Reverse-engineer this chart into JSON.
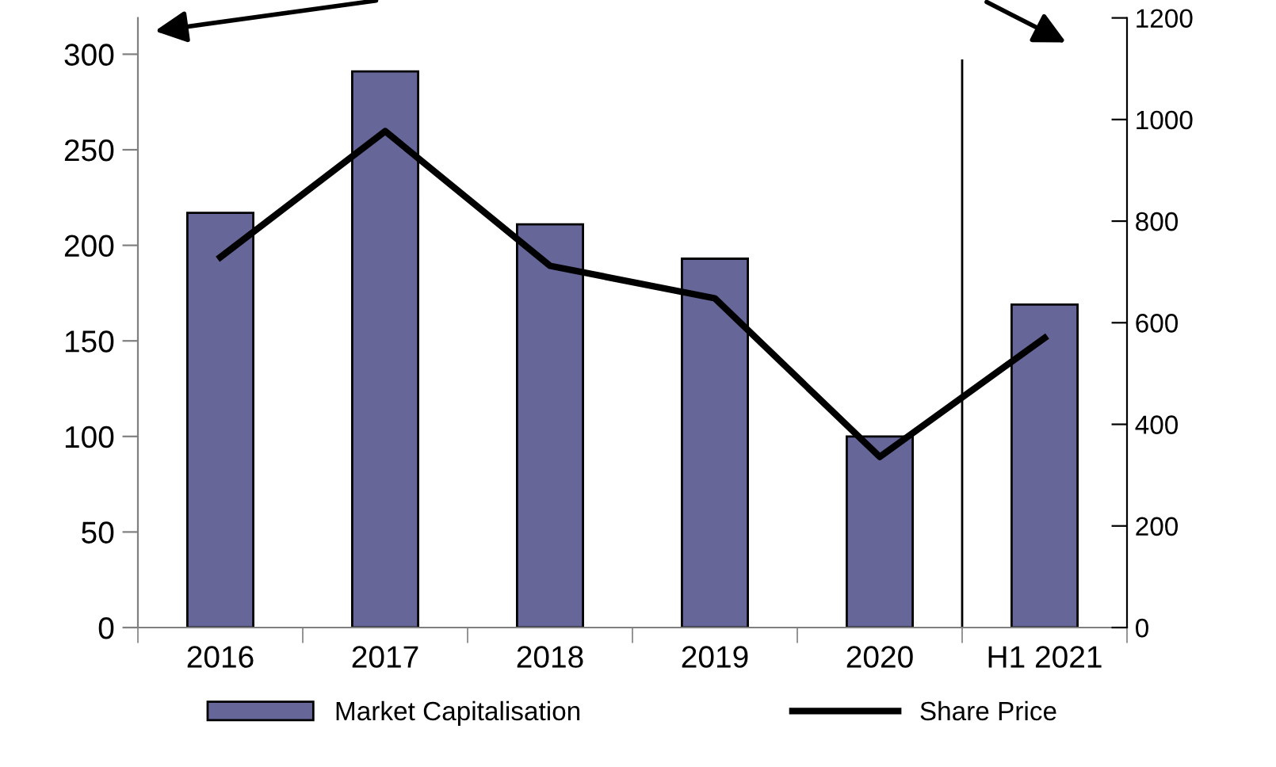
{
  "chart_data": {
    "type": "bar",
    "categories": [
      "2016",
      "2017",
      "2018",
      "2019",
      "2020",
      "H1 2021"
    ],
    "series": [
      {
        "name": "Market Capitalisation",
        "color": "#666699",
        "values": [
          217,
          291,
          211,
          193,
          100,
          169
        ]
      },
      {
        "name": "Share Price",
        "type": "line",
        "axis": "y2",
        "color": "#000000",
        "values": [
          729,
          977,
          712,
          648,
          336,
          570
        ]
      }
    ],
    "ylim": [
      0,
      319
    ],
    "yticks": [
      0,
      50,
      100,
      150,
      200,
      250,
      300
    ],
    "y2lim": [
      0,
      1200
    ],
    "y2ticks": [
      0,
      200,
      400,
      600,
      800,
      1000,
      1200
    ],
    "grid": false,
    "legend": "bottom",
    "marker": "none",
    "line_style": "solid"
  }
}
